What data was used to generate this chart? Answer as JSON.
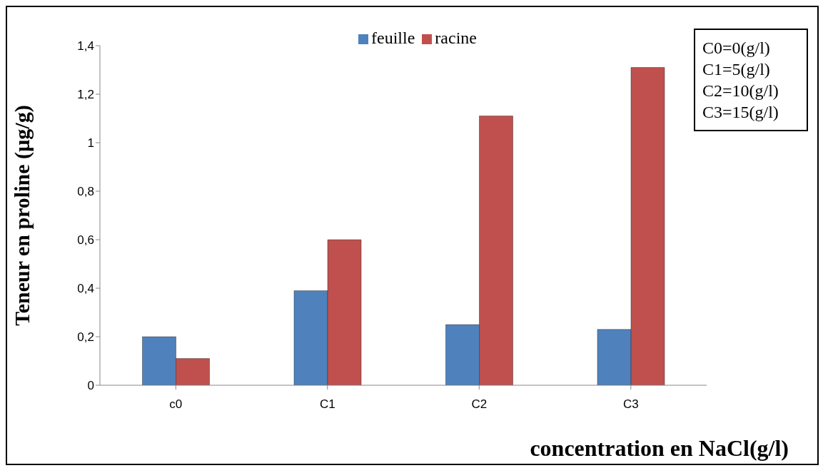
{
  "chart_data": {
    "type": "bar",
    "xlabel": "concentration en NaCl(g/l)",
    "ylabel": "Teneur en proline (µg/g)",
    "categories": [
      "c0",
      "C1",
      "C2",
      "C3"
    ],
    "series": [
      {
        "name": "feuille",
        "color": "#4f81bd",
        "values": [
          0.2,
          0.39,
          0.25,
          0.23
        ]
      },
      {
        "name": "racine",
        "color": "#c0504d",
        "values": [
          0.11,
          0.6,
          1.11,
          1.31
        ]
      }
    ],
    "ylim": [
      0,
      1.4
    ],
    "yticks": [
      {
        "value": 0,
        "label": "0"
      },
      {
        "value": 0.2,
        "label": "0,2"
      },
      {
        "value": 0.4,
        "label": "0,4"
      },
      {
        "value": 0.6,
        "label": "0,6"
      },
      {
        "value": 0.8,
        "label": "0,8"
      },
      {
        "value": 1,
        "label": "1"
      },
      {
        "value": 1.2,
        "label": "1,2"
      },
      {
        "value": 1.4,
        "label": "1,4"
      }
    ],
    "legend": "top",
    "grid": false,
    "annotations": [
      "C0=0(g/l)",
      "C1=5(g/l)",
      "C2=10(g/l)",
      "C3=15(g/l)"
    ]
  }
}
